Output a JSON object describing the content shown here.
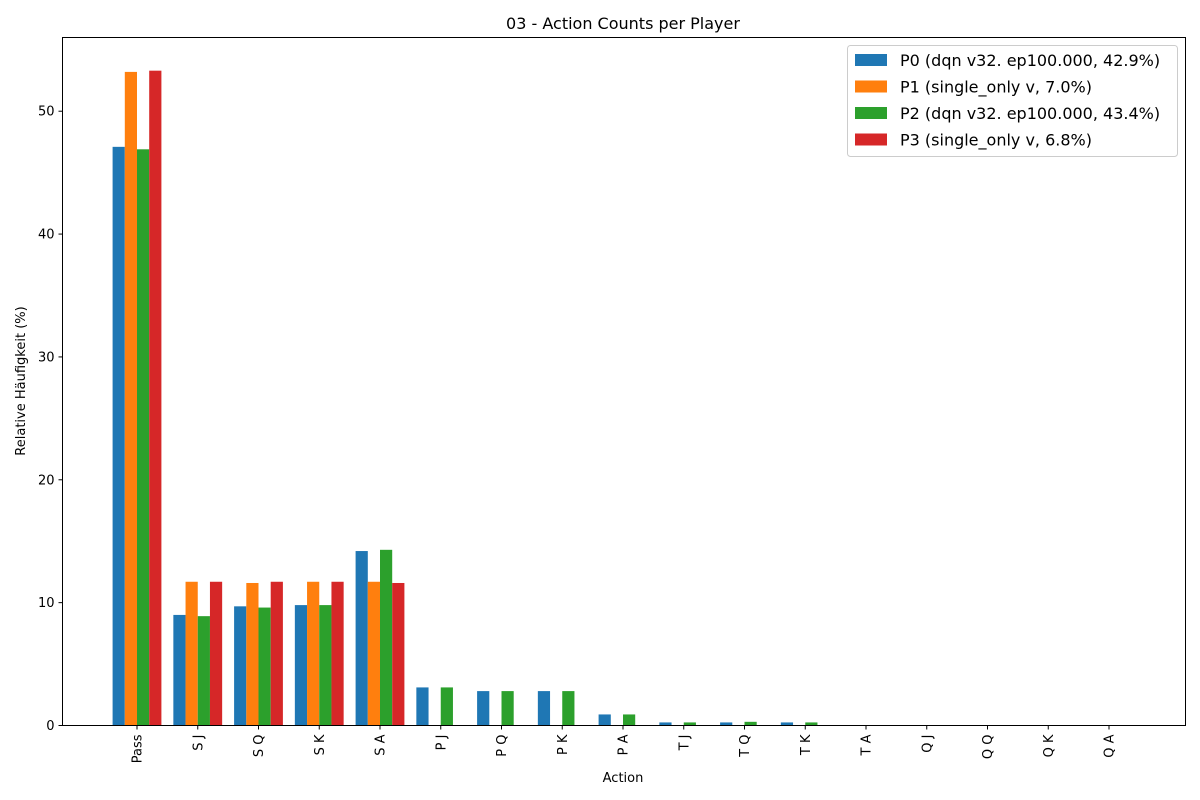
{
  "chart_data": {
    "type": "bar",
    "title": "03 - Action Counts per Player",
    "xlabel": "Action",
    "ylabel": "Relative Häufigkeit (%)",
    "ylim": [
      0,
      56
    ],
    "yticks": [
      0,
      10,
      20,
      30,
      40,
      50
    ],
    "grid": false,
    "legend_position": "top-right",
    "categories": [
      "Pass",
      "S J",
      "S Q",
      "S K",
      "S A",
      "P J",
      "P Q",
      "P K",
      "P A",
      "T J",
      "T Q",
      "T K",
      "T A",
      "Q J",
      "Q Q",
      "Q K",
      "Q A"
    ],
    "series": [
      {
        "name": "P0 (dqn v32. ep100.000, 42.9%)",
        "color": "#1f77b4",
        "values": [
          47.1,
          9.0,
          9.7,
          9.8,
          14.2,
          3.1,
          2.8,
          2.8,
          0.9,
          0.25,
          0.25,
          0.25,
          0,
          0,
          0,
          0,
          0
        ]
      },
      {
        "name": "P1 (single_only v, 7.0%)",
        "color": "#ff7f0e",
        "values": [
          53.2,
          11.7,
          11.6,
          11.7,
          11.7,
          0,
          0,
          0,
          0,
          0,
          0,
          0,
          0,
          0,
          0,
          0,
          0
        ]
      },
      {
        "name": "P2 (dqn v32. ep100.000, 43.4%)",
        "color": "#2ca02c",
        "values": [
          46.9,
          8.9,
          9.6,
          9.8,
          14.3,
          3.1,
          2.8,
          2.8,
          0.9,
          0.25,
          0.3,
          0.25,
          0,
          0,
          0,
          0,
          0
        ]
      },
      {
        "name": "P3 (single_only v, 6.8%)",
        "color": "#d62728",
        "values": [
          53.3,
          11.7,
          11.7,
          11.7,
          11.6,
          0,
          0,
          0,
          0,
          0,
          0,
          0,
          0,
          0,
          0,
          0,
          0
        ]
      }
    ]
  }
}
